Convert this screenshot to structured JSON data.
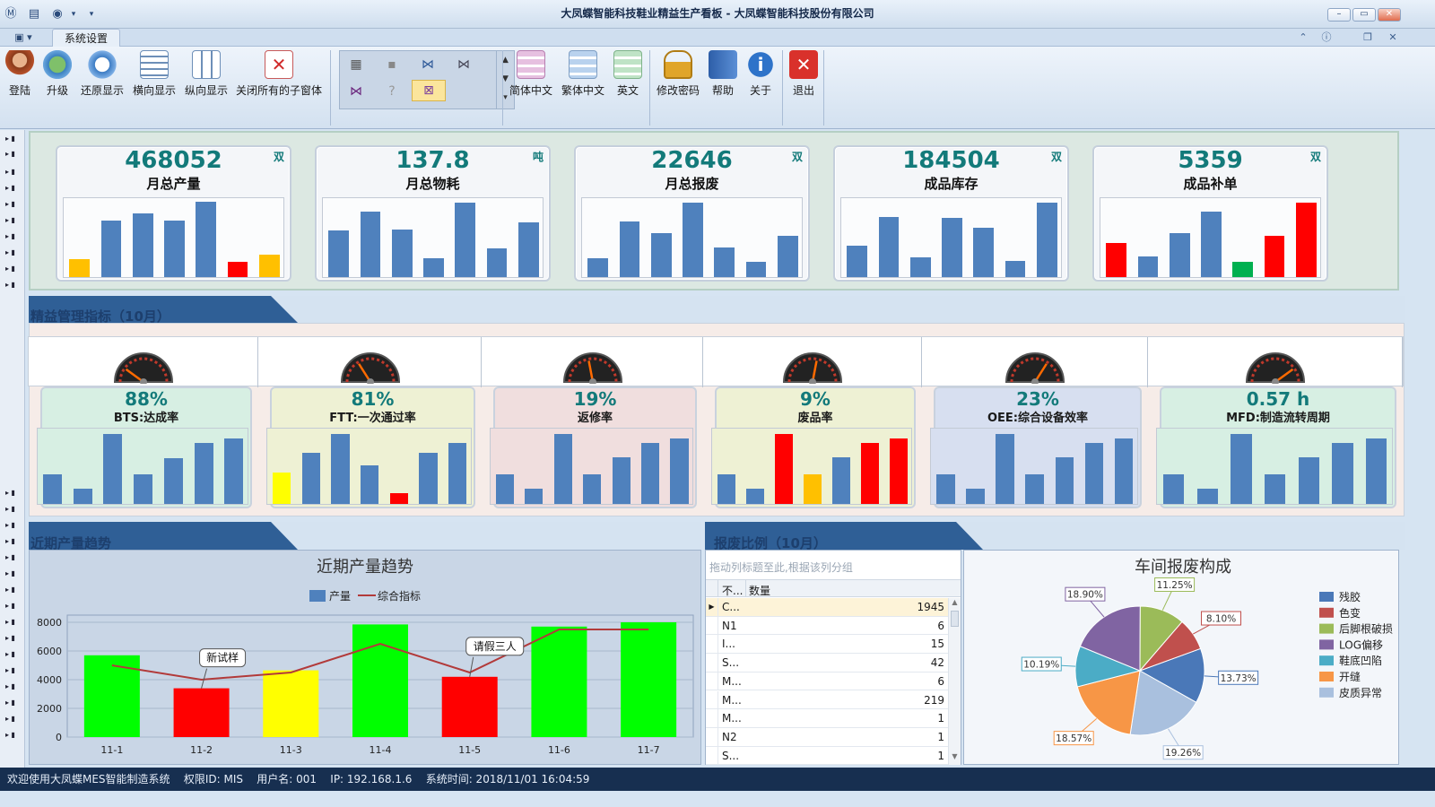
{
  "window": {
    "title": "大凤蝶智能科技鞋业精益生产看板 - 大凤蝶智能科技股份有限公司",
    "controls": [
      "–",
      "▭",
      "✕"
    ]
  },
  "tabs": {
    "active": "系统设置"
  },
  "ribbon": {
    "buttons": [
      "登陆",
      "升级",
      "还原显示",
      "横向显示",
      "纵向显示",
      "关闭所有的子窗体",
      "简体中文",
      "繁体中文",
      "英文",
      "修改密码",
      "帮助",
      "关于",
      "退出"
    ]
  },
  "kpis": [
    {
      "value": "468052",
      "label": "月总产量",
      "unit": "双",
      "bars": [
        0.24,
        0.75,
        0.85,
        0.75,
        1.0,
        0.2,
        0.3
      ],
      "colors": [
        "#ffc000",
        "#4f81bd",
        "#4f81bd",
        "#4f81bd",
        "#4f81bd",
        "#ff0000",
        "#ffc000"
      ]
    },
    {
      "value": "137.8",
      "label": "月总物耗",
      "unit": "吨",
      "bars": [
        0.62,
        0.87,
        0.63,
        0.25,
        0.99,
        0.38,
        0.73
      ],
      "colors": [
        "#4f81bd",
        "#4f81bd",
        "#4f81bd",
        "#4f81bd",
        "#4f81bd",
        "#4f81bd",
        "#4f81bd"
      ]
    },
    {
      "value": "22646",
      "label": "月总报废",
      "unit": "双",
      "bars": [
        0.25,
        0.74,
        0.58,
        0.99,
        0.39,
        0.2,
        0.55
      ],
      "colors": [
        "#4f81bd",
        "#4f81bd",
        "#4f81bd",
        "#4f81bd",
        "#4f81bd",
        "#4f81bd",
        "#4f81bd"
      ]
    },
    {
      "value": "184504",
      "label": "成品库存",
      "unit": "双",
      "bars": [
        0.42,
        0.8,
        0.26,
        0.78,
        0.65,
        0.22,
        0.99
      ],
      "colors": [
        "#4f81bd",
        "#4f81bd",
        "#4f81bd",
        "#4f81bd",
        "#4f81bd",
        "#4f81bd",
        "#4f81bd"
      ]
    },
    {
      "value": "5359",
      "label": "成品补单",
      "unit": "双",
      "bars": [
        0.45,
        0.27,
        0.58,
        0.87,
        0.2,
        0.55,
        0.99
      ],
      "colors": [
        "#ff0000",
        "#4f81bd",
        "#4f81bd",
        "#4f81bd",
        "#00b050",
        "#ff0000",
        "#ff0000"
      ]
    }
  ],
  "sections": {
    "lean": "精益管理指标（10月）",
    "trend": "近期产量趋势",
    "scrap": "报废比例（10月）"
  },
  "lean": [
    {
      "value": "88%",
      "label": "BTS:达成率",
      "bg": "#d7efe3",
      "bars": [
        0.42,
        0.22,
        1.0,
        0.42,
        0.65,
        0.87,
        0.94
      ],
      "colors": [
        "#4f81bd",
        "#4f81bd",
        "#4f81bd",
        "#4f81bd",
        "#4f81bd",
        "#4f81bd",
        "#4f81bd"
      ]
    },
    {
      "value": "81%",
      "label": "FTT:一次通过率",
      "bg": "#eef1d4",
      "bars": [
        0.45,
        0.73,
        1.0,
        0.55,
        0.16,
        0.73,
        0.87
      ],
      "colors": [
        "#ffff00",
        "#4f81bd",
        "#4f81bd",
        "#4f81bd",
        "#ff0000",
        "#4f81bd",
        "#4f81bd"
      ]
    },
    {
      "value": "19%",
      "label": "返修率",
      "bg": "#f0dede",
      "bars": [
        0.42,
        0.22,
        1.0,
        0.42,
        0.67,
        0.87,
        0.94
      ],
      "colors": [
        "#4f81bd",
        "#4f81bd",
        "#4f81bd",
        "#4f81bd",
        "#4f81bd",
        "#4f81bd",
        "#4f81bd"
      ]
    },
    {
      "value": "9%",
      "label": "废品率",
      "bg": "#eef1d4",
      "bars": [
        0.42,
        0.22,
        1.0,
        0.42,
        0.67,
        0.87,
        0.94
      ],
      "colors": [
        "#4f81bd",
        "#4f81bd",
        "#ff0000",
        "#ffc000",
        "#4f81bd",
        "#ff0000",
        "#ff0000"
      ]
    },
    {
      "value": "23%",
      "label": "OEE:综合设备效率",
      "bg": "#d7dff0",
      "bars": [
        0.42,
        0.22,
        1.0,
        0.42,
        0.67,
        0.87,
        0.94
      ],
      "colors": [
        "#4f81bd",
        "#4f81bd",
        "#4f81bd",
        "#4f81bd",
        "#4f81bd",
        "#4f81bd",
        "#4f81bd"
      ]
    },
    {
      "value": "0.57 h",
      "label": "MFD:制造流转周期",
      "bg": "#d7efe3",
      "bars": [
        0.42,
        0.22,
        1.0,
        0.42,
        0.67,
        0.87,
        0.94
      ],
      "colors": [
        "#4f81bd",
        "#4f81bd",
        "#4f81bd",
        "#4f81bd",
        "#4f81bd",
        "#4f81bd",
        "#4f81bd"
      ]
    }
  ],
  "chart_data": [
    {
      "type": "bar",
      "title": "近期产量趋势",
      "categories": [
        "11-1",
        "11-2",
        "11-3",
        "11-4",
        "11-5",
        "11-6",
        "11-7"
      ],
      "series": [
        {
          "name": "产量",
          "values": [
            5700,
            3400,
            4650,
            7850,
            4200,
            7700,
            8000
          ]
        },
        {
          "name": "综合指标",
          "values": [
            5000,
            4000,
            4500,
            6500,
            4500,
            7500,
            7500
          ]
        }
      ],
      "bar_colors": [
        "#00ff00",
        "#ff0000",
        "#ffff00",
        "#00ff00",
        "#ff0000",
        "#00ff00",
        "#00ff00"
      ],
      "yticks": [
        "0",
        "2000",
        "4000",
        "6000",
        "8000"
      ],
      "ylim": [
        0,
        8500
      ],
      "annotations": [
        {
          "text": "新试样",
          "at": "11-2"
        },
        {
          "text": "请假三人",
          "at": "11-5"
        }
      ]
    },
    {
      "type": "pie",
      "title": "车间报废构成",
      "labels": [
        "残胶",
        "色变",
        "后脚根破损",
        "LOG偏移",
        "鞋底凹陷",
        "开缝",
        "皮质异常"
      ],
      "values": [
        13.73,
        8.1,
        11.25,
        18.9,
        10.19,
        18.57,
        19.26
      ],
      "colors": [
        "#4a78b8",
        "#c0504d",
        "#9bbb59",
        "#8064a2",
        "#4bacc6",
        "#f79646",
        "#a9c0de"
      ],
      "value_labels": [
        "13.73%",
        "8.10%",
        "11.25%",
        "18.90%",
        "10.19%",
        "18.57%",
        "19.26%"
      ]
    }
  ],
  "grid": {
    "hint": "拖动列标题至此,根据该列分组",
    "col1": "不...",
    "col2": "数量",
    "rows": [
      {
        "a": "C...",
        "b": "1945"
      },
      {
        "a": "N1",
        "b": "6"
      },
      {
        "a": "I...",
        "b": "15"
      },
      {
        "a": "S...",
        "b": "42"
      },
      {
        "a": "M...",
        "b": "6"
      },
      {
        "a": "M...",
        "b": "219"
      },
      {
        "a": "M...",
        "b": "1"
      },
      {
        "a": "N2",
        "b": "1"
      },
      {
        "a": "S...",
        "b": "1"
      }
    ]
  },
  "status": {
    "welcome": "欢迎使用大凤蝶MES智能制造系统",
    "role": "权限ID: MIS",
    "user": "用户名: 001",
    "ip": "IP: 192.168.1.6",
    "time": "系统时间: 2018/11/01 16:04:59"
  }
}
